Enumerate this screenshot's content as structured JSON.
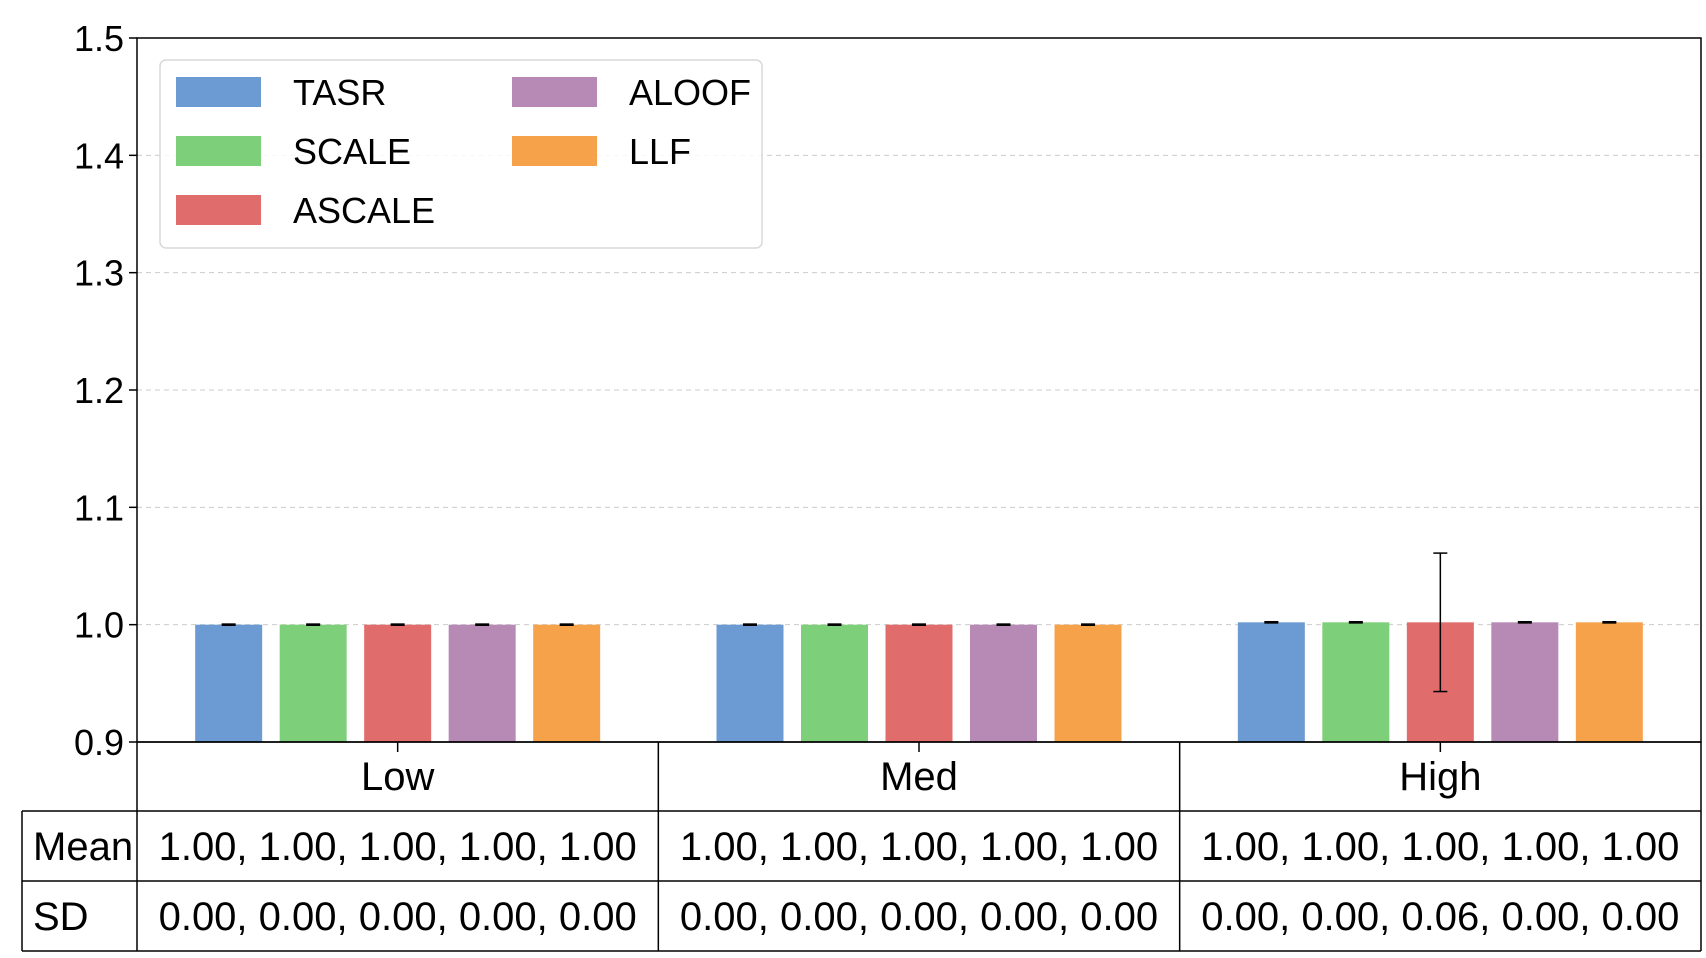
{
  "chart_data": {
    "type": "bar",
    "categories": [
      "Low",
      "Med",
      "High"
    ],
    "series": [
      {
        "name": "TASR",
        "color": "#6b9bd2",
        "values": [
          1.0,
          1.0,
          1.002
        ],
        "sd": [
          0.0005,
          0.0005,
          0.0005
        ]
      },
      {
        "name": "SCALE",
        "color": "#7ecf7a",
        "values": [
          1.0,
          1.0,
          1.002
        ],
        "sd": [
          0.0005,
          0.0005,
          0.0005
        ]
      },
      {
        "name": "ASCALE",
        "color": "#e06c6c",
        "values": [
          1.0,
          1.0,
          1.002
        ],
        "sd": [
          0.0005,
          0.0005,
          0.059
        ]
      },
      {
        "name": "ALOOF",
        "color": "#b68ab4",
        "values": [
          1.0,
          1.0,
          1.002
        ],
        "sd": [
          0.0005,
          0.0005,
          0.0005
        ]
      },
      {
        "name": "LLF",
        "color": "#f6a24a",
        "values": [
          1.0,
          1.0,
          1.002
        ],
        "sd": [
          0.0005,
          0.0005,
          0.0005
        ]
      }
    ],
    "yticks": [
      "0.9",
      "1.0",
      "1.1",
      "1.2",
      "1.3",
      "1.4",
      "1.5"
    ],
    "ylim": [
      0.9,
      1.5
    ],
    "grid": "horizontal-dashed",
    "legend_position": "top-left",
    "table": {
      "row_labels": [
        "Mean",
        "SD"
      ],
      "cells": [
        [
          "1.00, 1.00, 1.00, 1.00, 1.00",
          "1.00, 1.00, 1.00, 1.00, 1.00",
          "1.00, 1.00, 1.00, 1.00, 1.00"
        ],
        [
          "0.00, 0.00, 0.00, 0.00, 0.00",
          "0.00, 0.00, 0.00, 0.00, 0.00",
          "0.00, 0.00, 0.06, 0.00, 0.00"
        ]
      ]
    }
  }
}
